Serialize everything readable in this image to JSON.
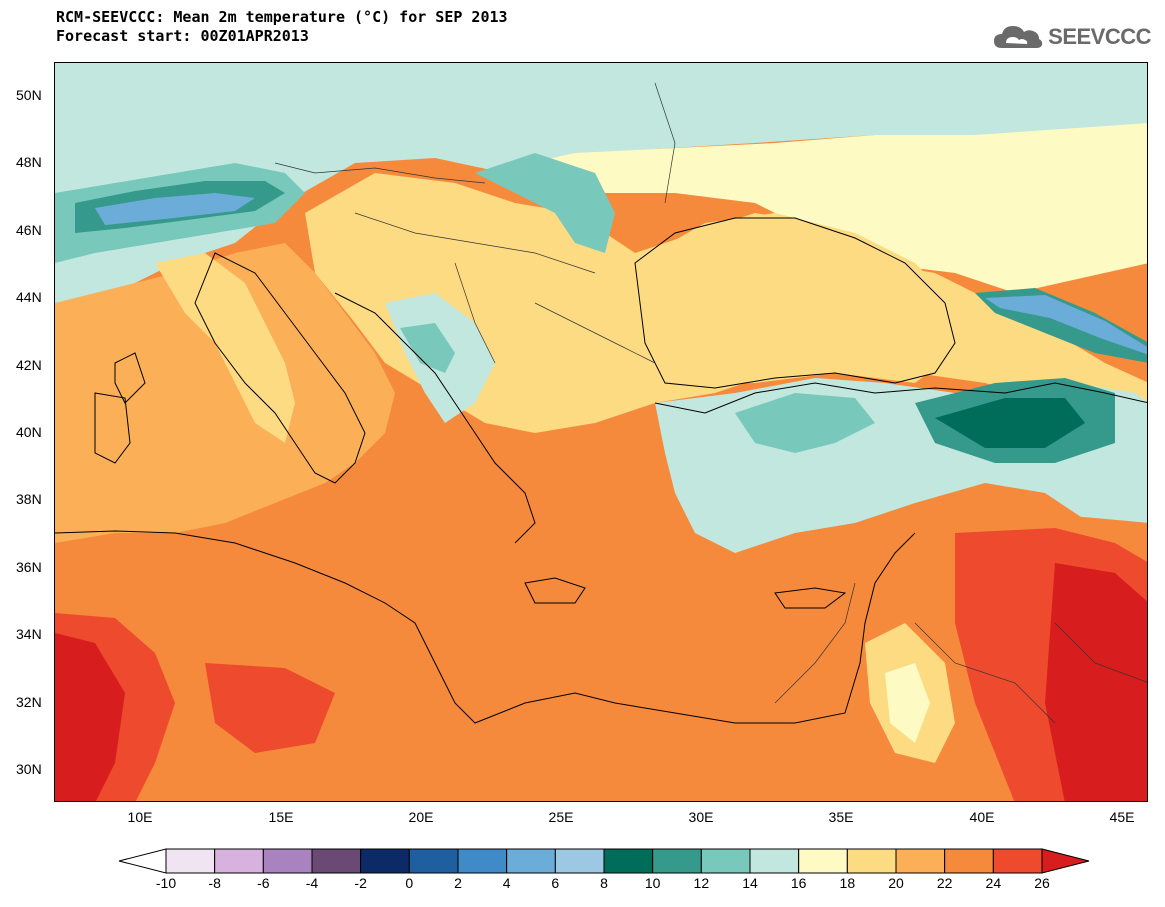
{
  "header": {
    "title_line1": "RCM-SEEVCCC: Mean 2m temperature (°C) for SEP 2013",
    "title_line2": "Forecast start: 00Z01APR2013"
  },
  "logo": {
    "text": "SEEVCCC",
    "icon": "cloud-icon"
  },
  "map": {
    "type": "filled-contour-map",
    "lat_range": [
      29,
      51
    ],
    "lon_range": [
      7,
      46
    ],
    "lat_labels": [
      "50N",
      "48N",
      "46N",
      "44N",
      "42N",
      "40N",
      "38N",
      "36N",
      "34N",
      "32N",
      "30N"
    ],
    "lon_labels": [
      "10E",
      "15E",
      "20E",
      "25E",
      "30E",
      "35E",
      "40E",
      "45E"
    ]
  },
  "colorbar": {
    "labels": [
      "-10",
      "-8",
      "-6",
      "-4",
      "-2",
      "0",
      "2",
      "4",
      "6",
      "8",
      "10",
      "12",
      "14",
      "16",
      "18",
      "20",
      "22",
      "24",
      "26"
    ],
    "colors": [
      "#f0e4f3",
      "#d8b2de",
      "#a883bf",
      "#6a4a74",
      "#0c2a66",
      "#1f5fa0",
      "#3f8ac7",
      "#6cacd9",
      "#9dc8e3",
      "#006d5b",
      "#359a8b",
      "#78c8bb",
      "#c2e7de",
      "#fdfac4",
      "#fddb82",
      "#fbb058",
      "#f58a3c",
      "#ed4a2e"
    ],
    "under_color": "#ffffff",
    "over_color": "#d71d1d"
  }
}
